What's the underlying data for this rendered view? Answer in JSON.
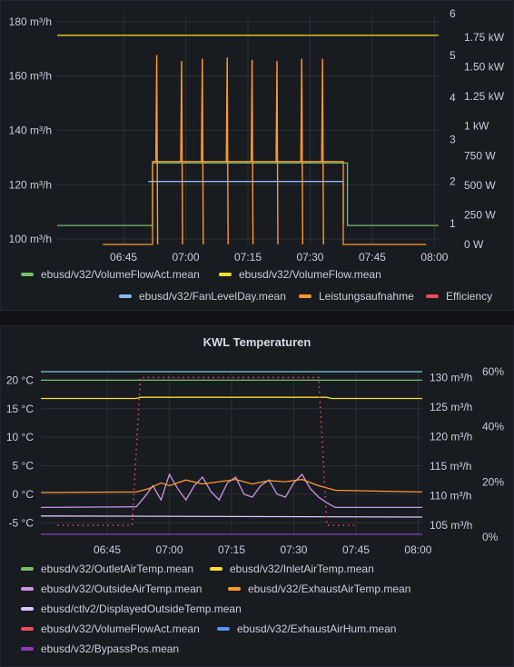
{
  "colors": {
    "green": "#73bf69",
    "yellow": "#fade2a",
    "blue": "#8ab8ff",
    "orange": "#ff9830",
    "red": "#f2495c",
    "purple": "#ca95e5",
    "lavender": "#dcc6ff",
    "royal": "#5794f2",
    "violet": "#8f3bb8",
    "cyan": "#73d0e6",
    "grid": "#2c2f36"
  },
  "chart_data": [
    {
      "type": "line",
      "title": "",
      "x_ticks": [
        "06:45",
        "07:00",
        "07:15",
        "07:30",
        "07:45",
        "08:00"
      ],
      "x_range": [
        "06:29",
        "08:01"
      ],
      "y_left": {
        "ticks": [
          "100 m³/h",
          "120 m³/h",
          "140 m³/h",
          "160 m³/h",
          "180 m³/h"
        ],
        "range": [
          98,
          183
        ]
      },
      "y_right_level": {
        "ticks": [
          "1",
          "2",
          "3",
          "4",
          "5",
          "6"
        ],
        "range": [
          0.5,
          6.0
        ]
      },
      "y_right_power": {
        "ticks": [
          "0 W",
          "250 W",
          "500 W",
          "750 W",
          "1 kW",
          "1.25 kW",
          "1.50 kW",
          "1.75 kW"
        ],
        "range": [
          0,
          1.95
        ]
      },
      "series": [
        {
          "name": "ebusd/v32/VolumeFlowAct.mean",
          "color": "green",
          "axis": "left",
          "points": [
            [
              "06:29",
              105
            ],
            [
              "06:52",
              105
            ],
            [
              "06:52",
              128
            ],
            [
              "07:39",
              128
            ],
            [
              "07:39",
              105
            ],
            [
              "08:01",
              105
            ]
          ]
        },
        {
          "name": "ebusd/v32/VolumeFlow.mean",
          "color": "yellow",
          "axis": "left",
          "points": [
            [
              "06:29",
              175
            ],
            [
              "08:01",
              175
            ]
          ]
        },
        {
          "name": "ebusd/v32/FanLevelDay.mean",
          "color": "blue",
          "axis": "level",
          "points": [
            [
              "06:51",
              2
            ],
            [
              "07:38",
              2
            ],
            [
              "07:38",
              1
            ]
          ]
        },
        {
          "name": "Leistungsaufnahme",
          "color": "orange",
          "axis": "power",
          "points": [
            [
              "06:40",
              0
            ],
            [
              "06:52",
              0
            ],
            [
              "06:52",
              0.7
            ],
            [
              "07:38",
              0.7
            ],
            [
              "07:38",
              0
            ],
            [
              "07:58",
              0
            ]
          ],
          "spikes": [
            {
              "t": "06:53",
              "v": 1.6
            },
            {
              "t": "06:59",
              "v": 1.55
            },
            {
              "t": "07:04",
              "v": 1.57
            },
            {
              "t": "07:10",
              "v": 1.58
            },
            {
              "t": "07:16",
              "v": 1.56
            },
            {
              "t": "07:22",
              "v": 1.55
            },
            {
              "t": "07:28",
              "v": 1.57
            },
            {
              "t": "07:33",
              "v": 1.57
            }
          ]
        },
        {
          "name": "Efficiency",
          "color": "red",
          "axis": "power",
          "points": []
        }
      ],
      "legend": [
        {
          "label": "ebusd/v32/VolumeFlowAct.mean",
          "color": "green"
        },
        {
          "label": "ebusd/v32/VolumeFlow.mean",
          "color": "yellow"
        },
        {
          "label": "ebusd/v32/FanLevelDay.mean",
          "color": "blue"
        },
        {
          "label": "Leistungsaufnahme",
          "color": "orange"
        },
        {
          "label": "Efficiency",
          "color": "red"
        }
      ]
    },
    {
      "type": "line",
      "title": "KWL Temperaturen",
      "x_ticks": [
        "06:45",
        "07:00",
        "07:15",
        "07:30",
        "07:45",
        "08:00"
      ],
      "x_range": [
        "06:29",
        "08:01"
      ],
      "y_left": {
        "ticks": [
          "-5 °C",
          "0 °C",
          "5 °C",
          "10 °C",
          "15 °C",
          "20 °C"
        ],
        "range": [
          -7.5,
          21.5
        ]
      },
      "y_right_flow": {
        "ticks": [
          "105 m³/h",
          "110 m³/h",
          "115 m³/h",
          "120 m³/h",
          "125 m³/h",
          "130 m³/h"
        ],
        "range": [
          103,
          131
        ]
      },
      "y_right_pct": {
        "ticks": [
          "0%",
          "20%",
          "40%",
          "60%"
        ],
        "range": [
          0,
          60
        ]
      },
      "series": [
        {
          "name": "ebusd/v32/OutletAirTemp.mean",
          "color": "green",
          "axis": "left",
          "points": [
            [
              "06:29",
              20
            ],
            [
              "08:01",
              20
            ]
          ]
        },
        {
          "name": "ebusd/v32/InletAirTemp.mean",
          "color": "yellow",
          "axis": "left",
          "points": [
            [
              "06:29",
              16.8
            ],
            [
              "06:52",
              16.8
            ],
            [
              "06:53",
              17.0
            ],
            [
              "07:38",
              17.0
            ],
            [
              "07:39",
              16.8
            ],
            [
              "08:01",
              16.8
            ]
          ]
        },
        {
          "name": "ebusd/v32/OutsideAirTemp.mean",
          "color": "purple",
          "axis": "left",
          "points": [
            [
              "06:29",
              -2.3
            ],
            [
              "06:52",
              -2.2
            ],
            [
              "06:54",
              -0.5
            ],
            [
              "06:56",
              1.5
            ],
            [
              "06:58",
              -1
            ],
            [
              "07:00",
              3.5
            ],
            [
              "07:02",
              1
            ],
            [
              "07:04",
              -1
            ],
            [
              "07:06",
              1.5
            ],
            [
              "07:08",
              3
            ],
            [
              "07:10",
              0.5
            ],
            [
              "07:12",
              -1
            ],
            [
              "07:14",
              2
            ],
            [
              "07:16",
              3
            ],
            [
              "07:18",
              0
            ],
            [
              "07:20",
              -0.5
            ],
            [
              "07:22",
              1.5
            ],
            [
              "07:24",
              2.5
            ],
            [
              "07:26",
              0
            ],
            [
              "07:28",
              -0.5
            ],
            [
              "07:30",
              2
            ],
            [
              "07:32",
              3.5
            ],
            [
              "07:34",
              1
            ],
            [
              "07:36",
              -0.5
            ],
            [
              "07:38",
              -1.5
            ],
            [
              "07:40",
              -2.3
            ],
            [
              "08:01",
              -2.3
            ]
          ]
        },
        {
          "name": "ebusd/v32/ExhaustAirTemp.mean",
          "color": "orange",
          "axis": "left",
          "points": [
            [
              "06:29",
              0.3
            ],
            [
              "06:52",
              0.4
            ],
            [
              "06:55",
              1
            ],
            [
              "06:58",
              2
            ],
            [
              "07:00",
              1.5
            ],
            [
              "07:04",
              2.5
            ],
            [
              "07:08",
              1.8
            ],
            [
              "07:12",
              2.2
            ],
            [
              "07:16",
              2.6
            ],
            [
              "07:20",
              1.8
            ],
            [
              "07:24",
              2.4
            ],
            [
              "07:28",
              2.2
            ],
            [
              "07:32",
              2.6
            ],
            [
              "07:36",
              1.5
            ],
            [
              "07:40",
              0.7
            ],
            [
              "08:01",
              0.4
            ]
          ]
        },
        {
          "name": "ebusd/ctlv2/DisplayedOutsideTemp.mean",
          "color": "lavender",
          "axis": "left",
          "points": [
            [
              "06:29",
              -3.8
            ],
            [
              "08:01",
              -4.0
            ]
          ]
        },
        {
          "name": "ebusd/v32/VolumeFlowAct.mean",
          "color": "red",
          "axis": "flow",
          "style": "dotted",
          "points": [
            [
              "06:33",
              105
            ],
            [
              "06:51",
              105
            ],
            [
              "06:53",
              130
            ],
            [
              "07:36",
              130
            ],
            [
              "07:38",
              105
            ],
            [
              "07:45",
              105
            ]
          ]
        },
        {
          "name": "ebusd/v32/ExhaustAirHum.mean",
          "color": "royal",
          "axis": "pct",
          "points": []
        },
        {
          "name": "ebusd/v32/BypassPos.mean",
          "color": "violet",
          "axis": "left",
          "points": [
            [
              "06:29",
              -7
            ],
            [
              "08:01",
              -7
            ]
          ]
        },
        {
          "name": "",
          "color": "cyan",
          "axis": "pct",
          "points": [
            [
              "06:29",
              60
            ],
            [
              "08:01",
              60
            ]
          ]
        }
      ],
      "legend": [
        {
          "label": "ebusd/v32/OutletAirTemp.mean",
          "color": "green"
        },
        {
          "label": "ebusd/v32/InletAirTemp.mean",
          "color": "yellow"
        },
        {
          "label": "ebusd/v32/OutsideAirTemp.mean",
          "color": "purple"
        },
        {
          "label": "ebusd/v32/ExhaustAirTemp.mean",
          "color": "orange"
        },
        {
          "label": "ebusd/ctlv2/DisplayedOutsideTemp.mean",
          "color": "lavender"
        },
        {
          "label": "ebusd/v32/VolumeFlowAct.mean",
          "color": "red"
        },
        {
          "label": "ebusd/v32/ExhaustAirHum.mean",
          "color": "royal"
        },
        {
          "label": "ebusd/v32/BypassPos.mean",
          "color": "violet"
        }
      ]
    }
  ]
}
